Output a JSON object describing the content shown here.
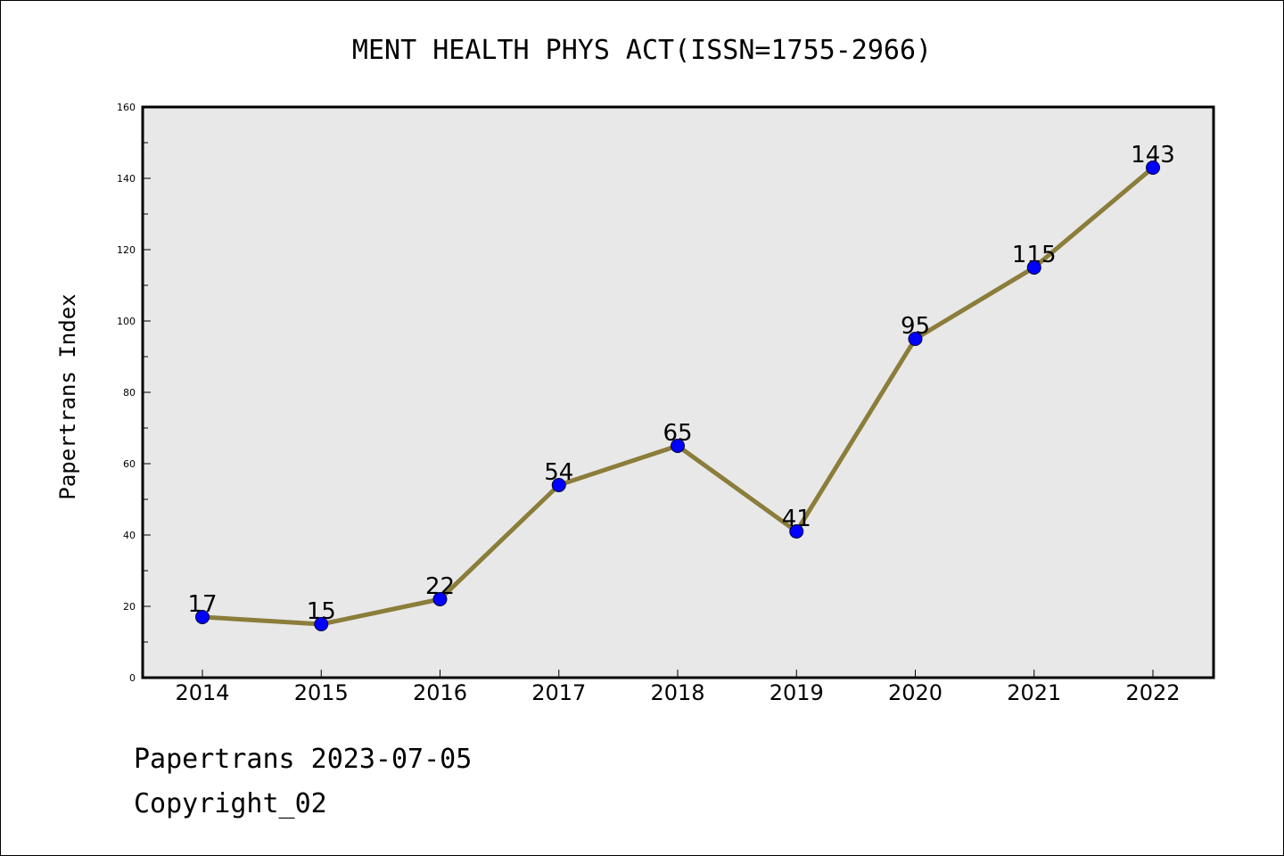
{
  "chart_data": {
    "type": "line",
    "title": "MENT HEALTH PHYS ACT(ISSN=1755-2966)",
    "xlabel": "",
    "ylabel": "Papertrans Index",
    "categories": [
      "2014",
      "2015",
      "2016",
      "2017",
      "2018",
      "2019",
      "2020",
      "2021",
      "2022"
    ],
    "series": [
      {
        "values": [
          17,
          15,
          22,
          54,
          65,
          41,
          95,
          115,
          143
        ]
      }
    ],
    "ylim": [
      0,
      160
    ],
    "yticks": [
      "0",
      "20",
      "40",
      "60",
      "80",
      "100",
      "120",
      "140",
      "160"
    ],
    "data_labels": [
      "17",
      "15",
      "22",
      "54",
      "65",
      "41",
      "95",
      "115",
      "143"
    ],
    "grid": false,
    "legend": "none"
  },
  "footer": {
    "line1": "Papertrans 2023-07-05",
    "line2": "Copyright_02"
  },
  "colors": {
    "line": "#8b7d3a",
    "marker": "#0000ff",
    "plot_background": "#e8e8e8"
  }
}
